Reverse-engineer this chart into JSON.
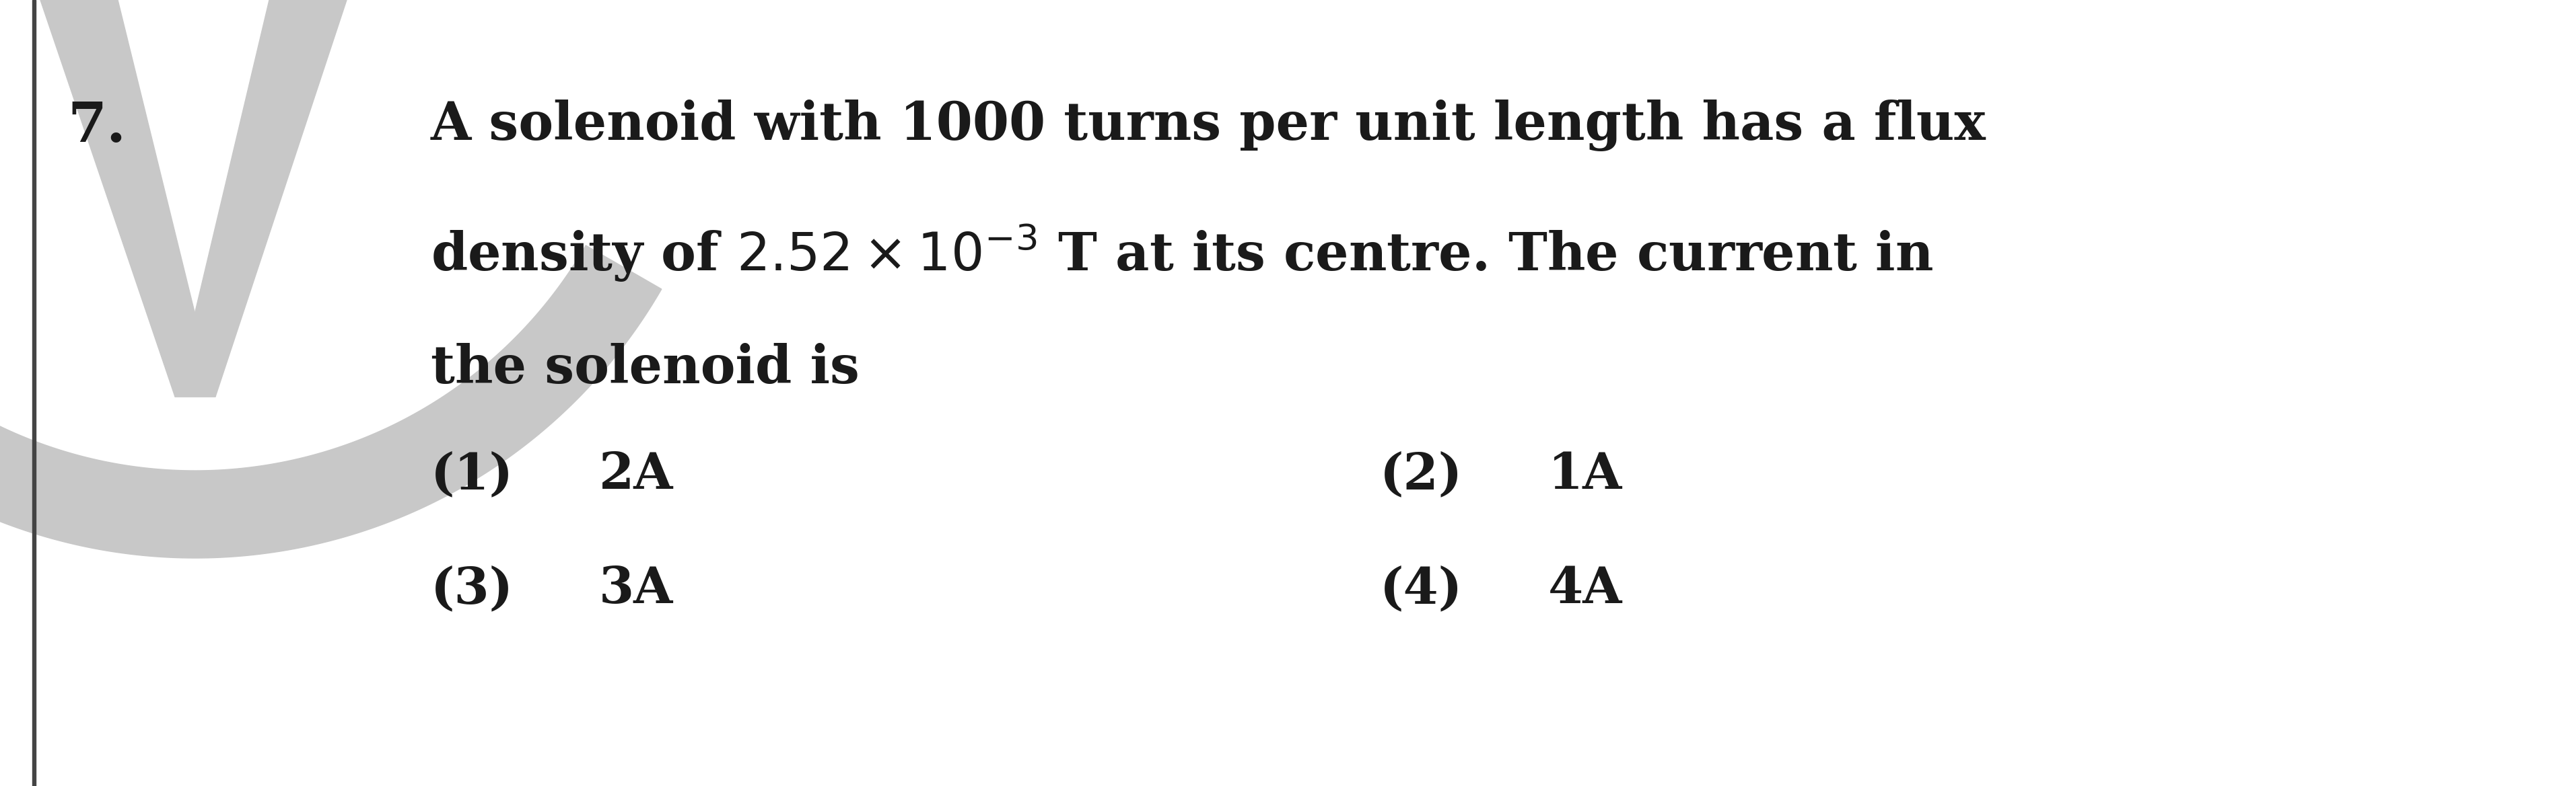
{
  "question_number": "7.",
  "line1": "A solenoid with 1000 turns per unit length has a flux",
  "line2": "density of $2.52\\times10^{-3}$ T at its centre. The current in",
  "line3": "the solenoid is",
  "opt1_label": "(1)",
  "opt1_val": "2A",
  "opt2_label": "(2)",
  "opt2_val": "1A",
  "opt3_label": "(3)",
  "opt3_val": "3A",
  "opt4_label": "(4)",
  "opt4_val": "4A",
  "bg_color": "#ffffff",
  "text_color": "#1a1a1a",
  "font_size": 56,
  "opt_font_size": 54,
  "qnum_font_size": 60,
  "bar_color": "#444444",
  "wm_color": "#c8c8c8"
}
